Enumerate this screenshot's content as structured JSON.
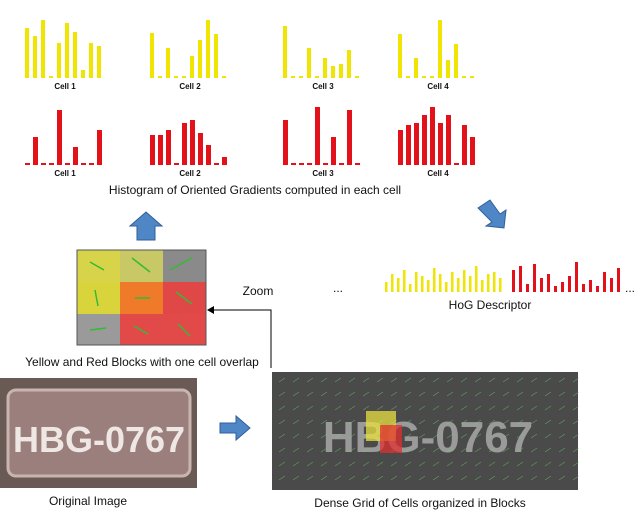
{
  "histograms": [
    {
      "label": "Cell 1",
      "color": "#efe500",
      "values": [
        50,
        42,
        58,
        2,
        35,
        55,
        46,
        8,
        35,
        32
      ]
    },
    {
      "label": "Cell 2",
      "color": "#efe500",
      "values": [
        45,
        2,
        30,
        2,
        2,
        22,
        38,
        58,
        44,
        2
      ]
    },
    {
      "label": "Cell 3",
      "color": "#efe500",
      "values": [
        52,
        2,
        2,
        30,
        2,
        20,
        12,
        14,
        28,
        2
      ]
    },
    {
      "label": "Cell 4",
      "color": "#efe500",
      "values": [
        44,
        2,
        20,
        2,
        2,
        58,
        18,
        34,
        2,
        2
      ]
    },
    {
      "label": "Cell 1",
      "color": "#e3121a",
      "values": [
        2,
        28,
        2,
        2,
        55,
        2,
        18,
        2,
        2,
        35
      ]
    },
    {
      "label": "Cell 2",
      "color": "#e3121a",
      "values": [
        30,
        30,
        35,
        2,
        42,
        45,
        32,
        20,
        2,
        8
      ]
    },
    {
      "label": "Cell 3",
      "color": "#e3121a",
      "values": [
        45,
        2,
        2,
        2,
        58,
        2,
        28,
        2,
        55,
        2
      ]
    },
    {
      "label": "Cell 4",
      "color": "#e3121a",
      "values": [
        35,
        40,
        42,
        50,
        58,
        42,
        50,
        2,
        40,
        28
      ]
    }
  ],
  "histogram_caption": "Histogram of Oriented Gradients computed in each cell",
  "zoom": "Zoom",
  "blocks_caption": "Yellow and Red Blocks with one cell overlap",
  "descriptor": {
    "label": "HoG Descriptor",
    "ellipsis": "...",
    "yellow_color": "#efe500",
    "red_color": "#e3121a",
    "yellow": [
      10,
      18,
      14,
      22,
      8,
      20,
      16,
      12,
      24,
      18,
      10,
      20,
      14,
      22,
      16,
      26,
      12,
      18,
      20,
      14
    ],
    "red": [
      22,
      26,
      8,
      28,
      14,
      18,
      6,
      10,
      16,
      30,
      8,
      12,
      6,
      20,
      14,
      24
    ]
  },
  "original_caption": "Original Image",
  "dense_caption": "Dense Grid of Cells organized in Blocks",
  "plate_text": "HBG-0767"
}
